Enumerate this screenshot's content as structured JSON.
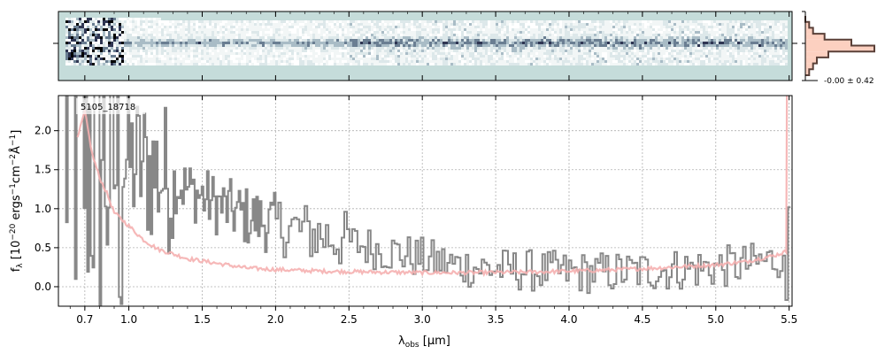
{
  "chart_data": {
    "type": "line",
    "xlabel": "λobs [μm]",
    "xlabel_main": "λ",
    "xlabel_sub": "obs",
    "xlabel_units": " [μm]",
    "ylabel_parts": [
      "f",
      "λ",
      " [10",
      "−20",
      " ergs",
      "−1",
      "cm",
      "−2",
      "Å",
      "−1",
      "]"
    ],
    "object_label": "5105_18718",
    "hist_label": "-0.00 ± 0.42",
    "xlim": [
      0.52,
      5.52
    ],
    "ylim": [
      -0.25,
      2.45
    ],
    "x_tick_values": [
      0.7,
      1.0,
      1.5,
      2.0,
      2.5,
      3.0,
      3.5,
      4.0,
      4.5,
      5.0,
      5.5
    ],
    "x_tick_labels": [
      "0.7",
      "1.0",
      "1.5",
      "2.0",
      "2.5",
      "3.0",
      "3.5",
      "4.0",
      "4.5",
      "5.0",
      "5.5"
    ],
    "y_tick_values": [
      0.0,
      0.5,
      1.0,
      1.5,
      2.0
    ],
    "y_tick_labels": [
      "0.0",
      "0.5",
      "1.0",
      "1.5",
      "2.0"
    ],
    "grid": true,
    "colors": {
      "data": "#888888",
      "model": "#f5b0b0",
      "spectrum_bg": "#c5dcda",
      "hist_fill": "#fcd0c0",
      "hist_line": "#5a4038"
    },
    "series": [
      {
        "role": "observed flux",
        "x": [
          0.6,
          0.7,
          0.8,
          0.9,
          1.0,
          1.2,
          1.4,
          1.6,
          1.8,
          2.0,
          2.2,
          2.4,
          2.6,
          2.8,
          3.0,
          3.2,
          3.4,
          3.6,
          3.8,
          4.0,
          4.2,
          4.4,
          4.6,
          4.8,
          5.0,
          5.2,
          5.4,
          5.5
        ],
        "y": [
          1.9,
          1.9,
          1.8,
          1.7,
          1.6,
          1.45,
          1.25,
          1.05,
          0.9,
          0.8,
          0.7,
          0.62,
          0.52,
          0.44,
          0.36,
          0.28,
          0.24,
          0.22,
          0.2,
          0.18,
          0.18,
          0.19,
          0.21,
          0.23,
          0.25,
          0.28,
          0.35,
          0.45
        ]
      },
      {
        "role": "model",
        "x": [
          0.65,
          0.7,
          0.75,
          0.8,
          0.85,
          0.9,
          1.0,
          1.1,
          1.2,
          1.4,
          1.6,
          1.8,
          2.0,
          2.3,
          2.6,
          3.0,
          3.4,
          3.8,
          4.2,
          4.6,
          5.0,
          5.2,
          5.4,
          5.48
        ],
        "y": [
          1.9,
          2.25,
          1.7,
          1.4,
          1.2,
          0.95,
          0.78,
          0.6,
          0.48,
          0.36,
          0.3,
          0.24,
          0.22,
          0.2,
          0.19,
          0.18,
          0.18,
          0.19,
          0.21,
          0.24,
          0.28,
          0.32,
          0.4,
          0.45
        ]
      }
    ],
    "histogram": {
      "bins": 10,
      "counts": [
        0,
        1,
        2,
        5,
        12,
        18,
        6,
        3,
        2,
        1
      ]
    }
  }
}
